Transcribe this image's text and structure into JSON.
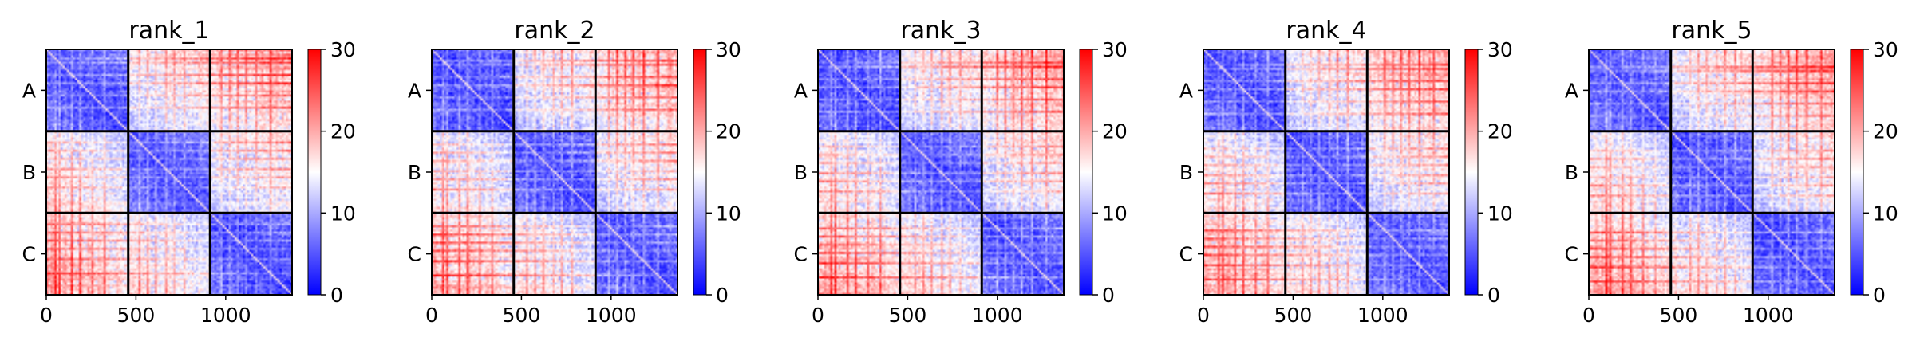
{
  "chart_data": {
    "type": "heatmap",
    "colormap": "bwr",
    "panels": [
      {
        "title": "rank_1"
      },
      {
        "title": "rank_2"
      },
      {
        "title": "rank_3"
      },
      {
        "title": "rank_4"
      },
      {
        "title": "rank_5"
      }
    ],
    "x_ticks": [
      0,
      500,
      1000
    ],
    "x_range": [
      0,
      1370
    ],
    "y_labels": [
      "A",
      "B",
      "C"
    ],
    "block_boundaries": [
      0,
      457,
      913,
      1370
    ],
    "colorbar": {
      "min": 0,
      "max": 30,
      "ticks": [
        0,
        10,
        20,
        30
      ]
    },
    "colors": {
      "low": "#0000ff",
      "mid": "#ffffff",
      "high": "#ff0000",
      "grid": "#000000"
    }
  }
}
